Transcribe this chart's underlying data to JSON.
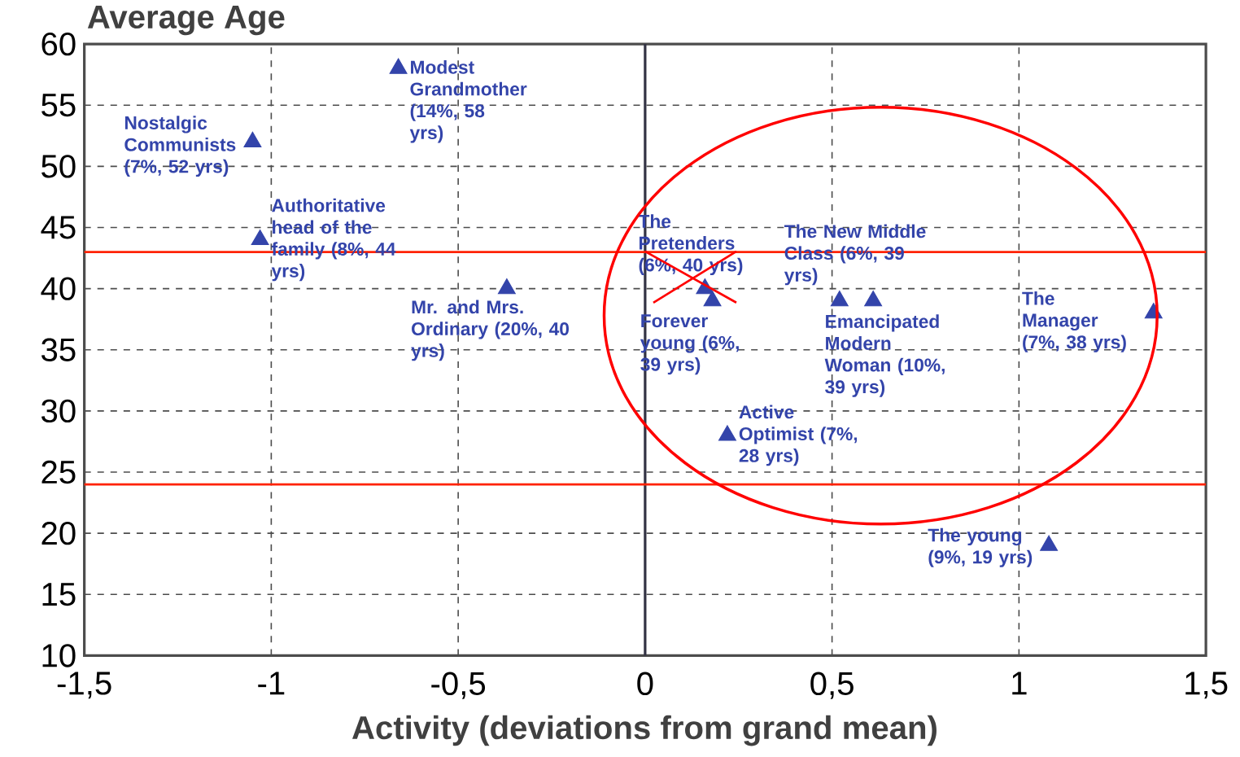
{
  "chart_data": {
    "type": "scatter",
    "ylabel": "Average Age",
    "xlabel": "Activity (deviations from grand mean)",
    "series": [
      {
        "color": "#3344aa",
        "x": [
          -1.05,
          -0.66,
          -1.03,
          -0.37,
          0.16,
          0.18,
          0.61,
          0.52,
          1.36,
          0.22,
          1.08
        ],
        "values": [
          52,
          58,
          44,
          40,
          40,
          39,
          39,
          39,
          38,
          28,
          19
        ]
      }
    ],
    "marker": "triangle",
    "xlim": [
      -1.5,
      1.5
    ],
    "ylim": [
      10,
      60
    ],
    "xticks": [
      {
        "value": -1.5,
        "label": "-1,5"
      },
      -1,
      {
        "value": -0.5,
        "label": "-0,5"
      },
      0,
      {
        "value": 0.5,
        "label": "0,5"
      },
      1,
      {
        "value": 1.5,
        "label": "1,5"
      }
    ],
    "yticks": [
      10,
      15,
      20,
      25,
      30,
      35,
      40,
      45,
      50,
      55,
      60
    ],
    "grid": true,
    "ref_lines": [
      {
        "axis": "x",
        "value": 0,
        "color": "#333344"
      },
      {
        "axis": "y",
        "value": 43,
        "color": "#ff2200"
      },
      {
        "axis": "y",
        "value": 24,
        "color": "#ff2200"
      }
    ],
    "annotations": [
      {
        "text": "Nostalgic Communists (7%, 52 yrs)",
        "x": -1.05,
        "y": 52
      },
      {
        "text": "Modest Grandmother (14%, 58 yrs)",
        "x": -0.66,
        "y": 58
      },
      {
        "text": "Authoritative head of the family (8%, 44 yrs)",
        "x": -1.03,
        "y": 44
      },
      {
        "text": "Mr. and Mrs. Ordinary (20%, 40 yrs)",
        "x": -0.37,
        "y": 40
      },
      {
        "text": "The Pretenders (6%, 40 yrs)",
        "x": 0.16,
        "y": 40
      },
      {
        "text": "Forever young (6%, 39 yrs)",
        "x": 0.18,
        "y": 39
      },
      {
        "text": "The New Middle Class (6%, 39 yrs)",
        "x": 0.61,
        "y": 39
      },
      {
        "text": "Emancipated Modern Woman (10%, 39 yrs)",
        "x": 0.52,
        "y": 39
      },
      {
        "text": "The Manager (7%, 38 yrs)",
        "x": 1.36,
        "y": 38
      },
      {
        "text": "Active Optimist (7%, 28 yrs)",
        "x": 0.22,
        "y": 28
      },
      {
        "text": "The young (9%, 19 yrs)",
        "x": 1.08,
        "y": 19
      }
    ]
  }
}
